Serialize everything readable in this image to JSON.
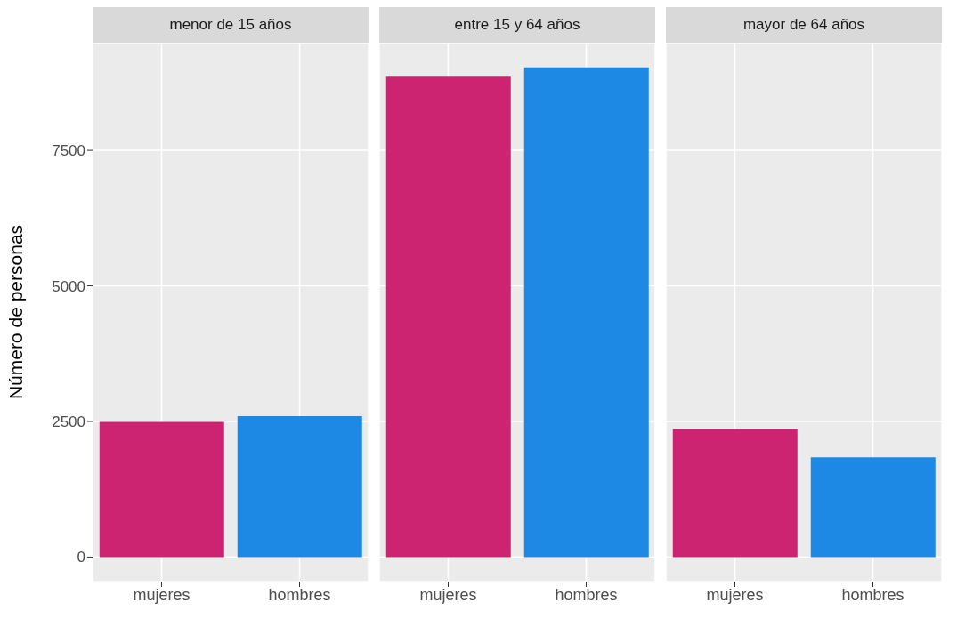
{
  "chart_data": [
    {
      "type": "bar",
      "title": "menor de 15 años",
      "ylabel": "Número de personas",
      "categories": [
        "mujeres",
        "hombres"
      ],
      "values": [
        2490,
        2600
      ],
      "colors": [
        "#cc2470",
        "#1e88e5"
      ],
      "ylim": [
        -452,
        9486
      ],
      "yticks": [
        0,
        2500,
        5000,
        7500
      ],
      "grid": true
    },
    {
      "type": "bar",
      "title": "entre 15 y 64 años",
      "categories": [
        "mujeres",
        "hombres"
      ],
      "values": [
        8860,
        9030
      ],
      "colors": [
        "#cc2470",
        "#1e88e5"
      ],
      "ylim": [
        -452,
        9486
      ],
      "yticks": [
        0,
        2500,
        5000,
        7500
      ],
      "grid": true,
      "tick_labels": "x"
    },
    {
      "type": "bar",
      "title": "mayor de 64 años",
      "categories": [
        "mujeres",
        "hombres"
      ],
      "values": [
        2360,
        1840
      ],
      "colors": [
        "#cc2470",
        "#1e88e5"
      ],
      "ylim": [
        -452,
        9486
      ],
      "yticks": [
        0,
        2500,
        5000,
        7500
      ],
      "grid": true,
      "tick_labels": "x"
    }
  ]
}
